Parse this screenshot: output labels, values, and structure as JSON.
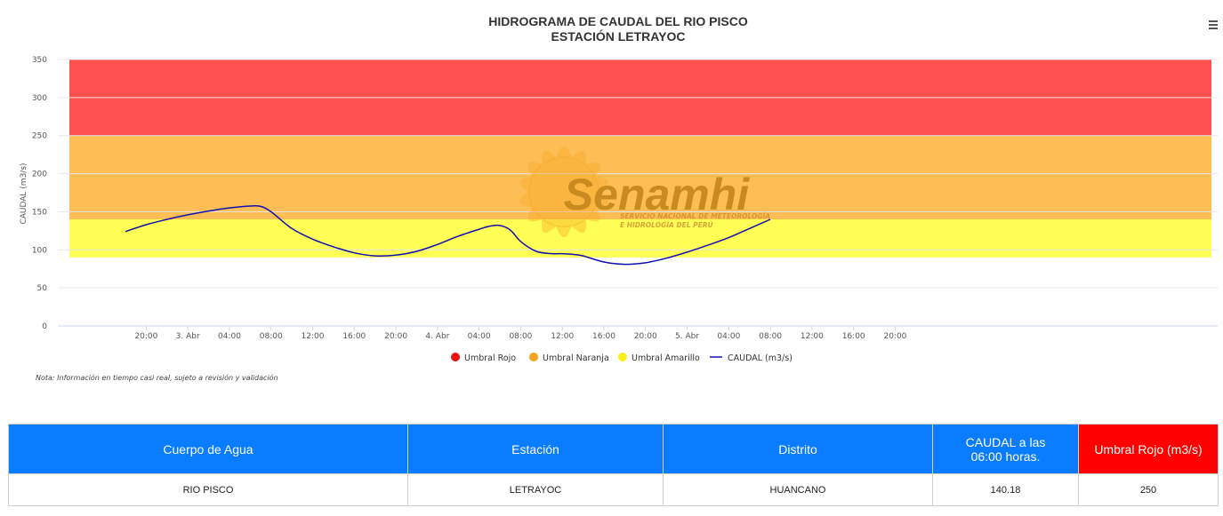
{
  "chart_data": {
    "type": "line",
    "title": "HIDROGRAMA DE CAUDAL DEL RIO PISCO",
    "subtitle": "ESTACIÓN LETRAYOC",
    "ylabel": "CAUDAL (m3/s)",
    "ylim": [
      0,
      350
    ],
    "yticks": [
      0,
      50,
      100,
      150,
      200,
      250,
      300,
      350
    ],
    "xlim_hours": [
      -6.5,
      105
    ],
    "xticks": [
      {
        "h": 2,
        "label": "20:00"
      },
      {
        "h": 6,
        "label": "3. Abr"
      },
      {
        "h": 10,
        "label": "04:00"
      },
      {
        "h": 14,
        "label": "08:00"
      },
      {
        "h": 18,
        "label": "12:00"
      },
      {
        "h": 22,
        "label": "16:00"
      },
      {
        "h": 26,
        "label": "20:00"
      },
      {
        "h": 30,
        "label": "4. Abr"
      },
      {
        "h": 34,
        "label": "04:00"
      },
      {
        "h": 38,
        "label": "08:00"
      },
      {
        "h": 42,
        "label": "12:00"
      },
      {
        "h": 46,
        "label": "16:00"
      },
      {
        "h": 50,
        "label": "20:00"
      },
      {
        "h": 54,
        "label": "5. Abr"
      },
      {
        "h": 58,
        "label": "04:00"
      },
      {
        "h": 62,
        "label": "08:00"
      },
      {
        "h": 66,
        "label": "12:00"
      },
      {
        "h": 70,
        "label": "16:00"
      },
      {
        "h": 74,
        "label": "20:00"
      }
    ],
    "bands": [
      {
        "name": "Umbral Rojo",
        "from": 250,
        "to": 350,
        "color": "#ff5050"
      },
      {
        "name": "Umbral Naranja",
        "from": 140,
        "to": 250,
        "color": "#fdbf55"
      },
      {
        "name": "Umbral Amarillo",
        "from": 90,
        "to": 140,
        "color": "#ffff55"
      }
    ],
    "series": [
      {
        "name": "CAUDAL (m3/s)",
        "color": "#1010b0",
        "points": [
          [
            0,
            124
          ],
          [
            2,
            133
          ],
          [
            4,
            140
          ],
          [
            6,
            146
          ],
          [
            8,
            151
          ],
          [
            10,
            155
          ],
          [
            12,
            157.5
          ],
          [
            13,
            157
          ],
          [
            14,
            150
          ],
          [
            16,
            128
          ],
          [
            18,
            114
          ],
          [
            20,
            104
          ],
          [
            22,
            96
          ],
          [
            24,
            92
          ],
          [
            26,
            93
          ],
          [
            28,
            98
          ],
          [
            30,
            107
          ],
          [
            32,
            118
          ],
          [
            34,
            127
          ],
          [
            35,
            131
          ],
          [
            36,
            132
          ],
          [
            37,
            126
          ],
          [
            38,
            111
          ],
          [
            39.5,
            98
          ],
          [
            41,
            95
          ],
          [
            42,
            95
          ],
          [
            43,
            94
          ],
          [
            44,
            92
          ],
          [
            46,
            84
          ],
          [
            48,
            81
          ],
          [
            50,
            83
          ],
          [
            52,
            89
          ],
          [
            54,
            97
          ],
          [
            56,
            106
          ],
          [
            58,
            116
          ],
          [
            60,
            128
          ],
          [
            62,
            140
          ]
        ]
      }
    ],
    "legend": [
      {
        "label": "Umbral Rojo",
        "color": "#ee1111",
        "kind": "dot"
      },
      {
        "label": "Umbral Naranja",
        "color": "#f4a41e",
        "kind": "dot"
      },
      {
        "label": "Umbral Amarillo",
        "color": "#f7f01a",
        "kind": "dot"
      },
      {
        "label": "CAUDAL (m3/s)",
        "color": "#1010b0",
        "kind": "line"
      }
    ],
    "legend_position": "bottom-center",
    "grid": true
  },
  "watermark": {
    "name": "Senamhi",
    "line1": "SERVICIO NACIONAL DE METEOROLOGÍA",
    "line2": "E HIDROLOGÍA DEL PERÚ"
  },
  "menu_icon": "hamburger-icon",
  "note": "Nota: Información en tiempo casi real, sujeto a revisión y validación",
  "table": {
    "headers": {
      "cuerpo": "Cuerpo de Agua",
      "estacion": "Estación",
      "distrito": "Distrito",
      "caudal_l1": "CAUDAL a las",
      "caudal_l2": "06:00 horas.",
      "umbral": "Umbral Rojo (m3/s)"
    },
    "row": {
      "cuerpo": "RIO PISCO",
      "estacion": "LETRAYOC",
      "distrito": "HUANCANO",
      "caudal": "140.18",
      "umbral": "250"
    }
  }
}
